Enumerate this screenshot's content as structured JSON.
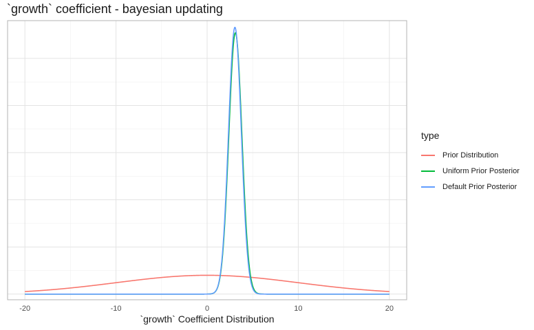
{
  "chart_data": {
    "type": "line",
    "title": "`growth` coefficient - bayesian updating",
    "xlabel": "`growth` Coefficient Distribution",
    "ylabel": "",
    "xlim": [
      -21.9,
      21.9
    ],
    "ylim": [
      -0.012,
      0.58
    ],
    "x_ticks": [
      -20,
      -10,
      0,
      10,
      20
    ],
    "y_gridlines": [
      0,
      0.1,
      0.2,
      0.3,
      0.4,
      0.5
    ],
    "y_tick_labels_shown": false,
    "grid": true,
    "legend": {
      "title": "type",
      "position": "right"
    },
    "series": [
      {
        "name": "Prior Distribution",
        "color": "#F8766D",
        "distribution": "normal",
        "mean": 0,
        "sd": 10,
        "x_range": [
          -20,
          20
        ],
        "peak": 0.0399
      },
      {
        "name": "Uniform Prior Posterior",
        "color": "#00BA38",
        "distribution": "normal",
        "mean": 3.1,
        "sd": 0.72,
        "x_range": [
          -20,
          20
        ],
        "peak": 0.556
      },
      {
        "name": "Default Prior Posterior",
        "color": "#619CFF",
        "distribution": "normal",
        "mean": 3.05,
        "sd": 0.705,
        "x_range": [
          -20,
          20
        ],
        "peak": 0.566
      }
    ]
  }
}
